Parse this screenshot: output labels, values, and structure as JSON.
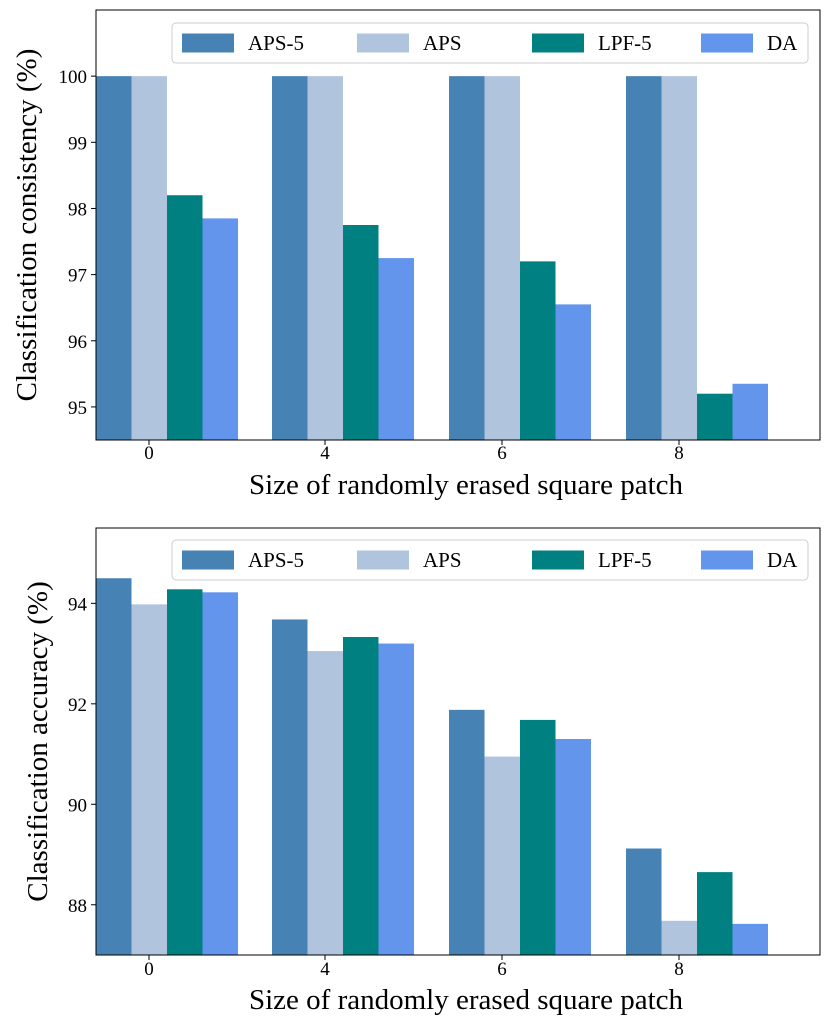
{
  "chart_data": [
    {
      "type": "bar",
      "title": "",
      "xlabel": "Size of randomly erased square patch",
      "ylabel": "Classification consistency (%)",
      "categories": [
        "0",
        "4",
        "6",
        "8"
      ],
      "ylim": [
        94.5,
        101.0
      ],
      "yticks": [
        95,
        96,
        97,
        98,
        99,
        100
      ],
      "grid": false,
      "legend": "top-right",
      "series": [
        {
          "name": "APS-5",
          "color": "#4682b4",
          "values": [
            100,
            100,
            100,
            100
          ]
        },
        {
          "name": "APS",
          "color": "#b0c4de",
          "values": [
            100,
            100,
            100,
            100
          ]
        },
        {
          "name": "LPF-5",
          "color": "#008080",
          "values": [
            98.2,
            97.75,
            97.2,
            95.2
          ]
        },
        {
          "name": "DA",
          "color": "#6495ed",
          "values": [
            97.85,
            97.25,
            96.55,
            95.35
          ]
        }
      ]
    },
    {
      "type": "bar",
      "title": "",
      "xlabel": "Size of randomly erased square patch",
      "ylabel": "Classification accuracy (%)",
      "categories": [
        "0",
        "4",
        "6",
        "8"
      ],
      "ylim": [
        87.0,
        95.5
      ],
      "yticks": [
        88,
        90,
        92,
        94
      ],
      "grid": false,
      "legend": "top-right",
      "series": [
        {
          "name": "APS-5",
          "color": "#4682b4",
          "values": [
            94.5,
            93.68,
            91.88,
            89.12
          ]
        },
        {
          "name": "APS",
          "color": "#b0c4de",
          "values": [
            93.98,
            93.05,
            90.95,
            87.68
          ]
        },
        {
          "name": "LPF-5",
          "color": "#008080",
          "values": [
            94.28,
            93.33,
            91.68,
            88.65
          ]
        },
        {
          "name": "DA",
          "color": "#6495ed",
          "values": [
            94.22,
            93.2,
            91.3,
            87.62
          ]
        }
      ]
    }
  ]
}
